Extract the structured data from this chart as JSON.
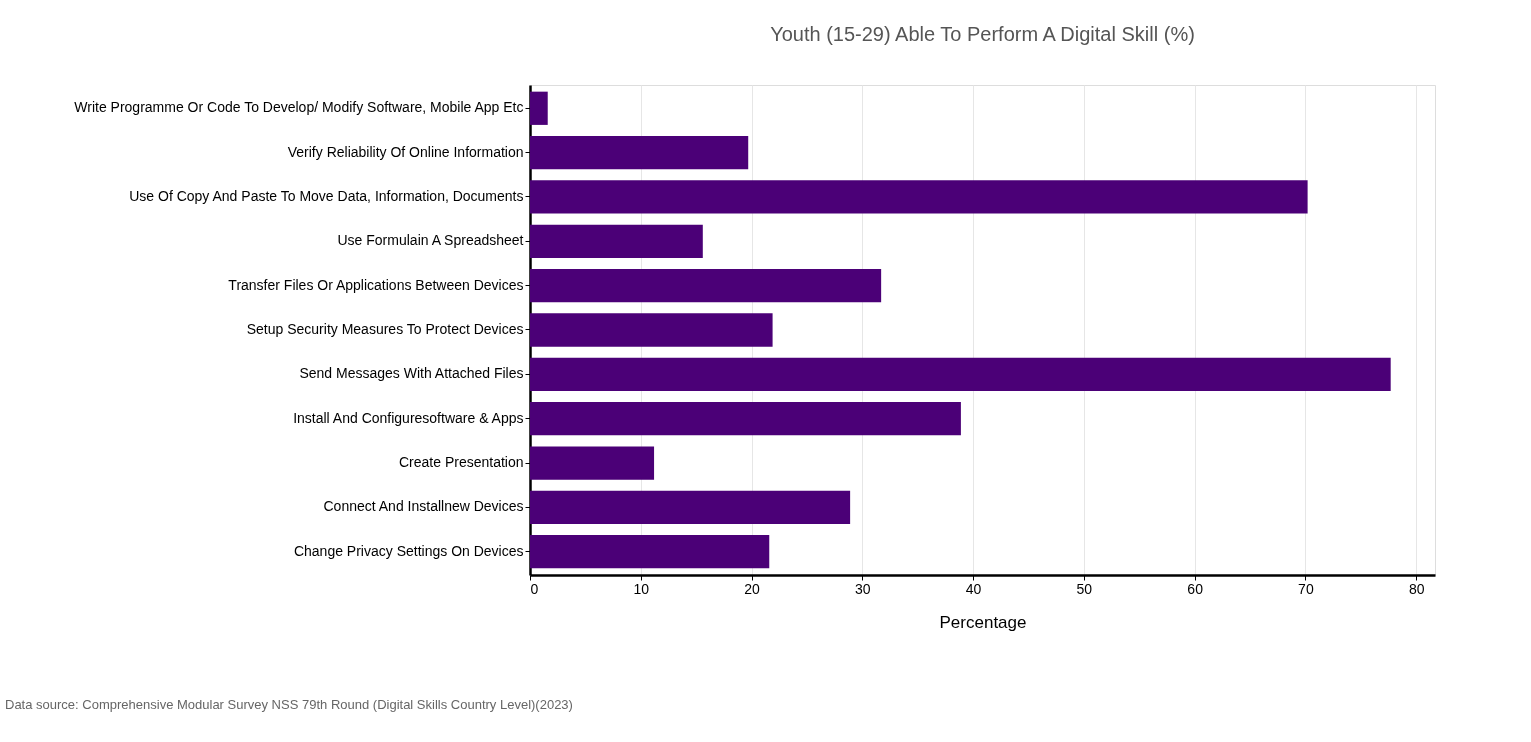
{
  "chart_data": {
    "type": "bar",
    "orientation": "horizontal",
    "title": "Youth (15-29) Able To Perform A Digital Skill (%)",
    "xlabel": "Percentage",
    "categories": [
      "Write Programme Or Code To Develop/ Modify Software, Mobile App Etc",
      "Verify Reliability Of Online Information",
      "Use Of Copy And Paste To Move Data, Information, Documents",
      "Use Formulain A Spreadsheet",
      "Transfer Files Or Applications  Between Devices",
      "Setup Security Measures  To Protect Devices",
      "Send Messages With Attached Files",
      "Install And Configuresoftware & Apps",
      "Create Presentation",
      "Connect And Installnew Devices",
      "Change Privacy Settings On Devices"
    ],
    "values": [
      1.6,
      19.7,
      70.2,
      15.6,
      31.7,
      21.9,
      77.7,
      38.9,
      11.2,
      28.9,
      21.6
    ],
    "color": "#4b0077",
    "xlim": [
      0,
      81.7
    ],
    "xticks": [
      0,
      10,
      20,
      30,
      40,
      50,
      60,
      70,
      80
    ],
    "grid": "x",
    "annotations": [
      "Data source: Comprehensive Modular Survey NSS 79th Round (Digital Skills Country Level)(2023)"
    ]
  }
}
